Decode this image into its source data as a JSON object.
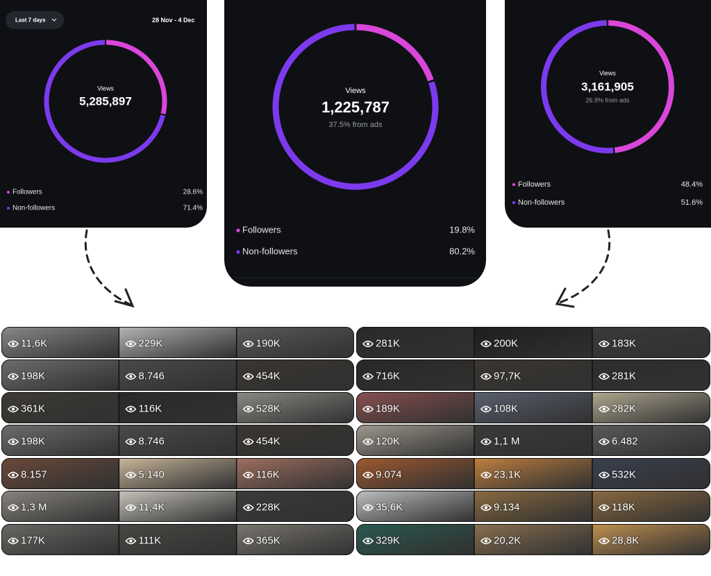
{
  "panels": [
    {
      "filter": "Last 7 days",
      "date_range": "28 Nov - 4 Dec",
      "metric": "Views",
      "total": "5,285,897",
      "legend": {
        "names": [
          "Followers",
          "Non-followers"
        ],
        "values": [
          28.6,
          71.4
        ],
        "value_labels": [
          "28.6%",
          "71.4%"
        ],
        "colors": [
          "#d946d9",
          "#7c3aed"
        ]
      }
    },
    {
      "metric": "Views",
      "total": "1,225,787",
      "ads_note": "37.5% from ads",
      "legend": {
        "names": [
          "Followers",
          "Non-followers"
        ],
        "values": [
          19.8,
          80.2
        ],
        "value_labels": [
          "19.8%",
          "80.2%"
        ],
        "colors": [
          "#d946d9",
          "#7c3aed"
        ]
      }
    },
    {
      "metric": "Views",
      "total": "3,161,905",
      "ads_note": "26.9% from ads",
      "legend": {
        "names": [
          "Followers",
          "Non-followers"
        ],
        "values": [
          48.4,
          51.6
        ],
        "value_labels": [
          "48.4%",
          "51.6%"
        ],
        "colors": [
          "#d946d9",
          "#7c3aed"
        ]
      }
    }
  ],
  "grids": [
    {
      "rows": [
        [
          "11,6K",
          "229K",
          "190K"
        ],
        [
          "198K",
          "8.746",
          "454K"
        ],
        [
          "361K",
          "116K",
          "528K"
        ],
        [
          "198K",
          "8.746",
          "454K"
        ],
        [
          "8.157",
          "5.140",
          "116K"
        ],
        [
          "1,3 M",
          "11,4K",
          "228K"
        ],
        [
          "177K",
          "111K",
          "365K"
        ]
      ]
    },
    {
      "rows": [
        [
          "281K",
          "200K",
          "183K"
        ],
        [
          "716K",
          "97,7K",
          "281K"
        ],
        [
          "189K",
          "108K",
          "282K"
        ],
        [
          "120K",
          "1,1 M",
          "6.482"
        ],
        [
          "9.074",
          "23,1K",
          "532K"
        ],
        [
          "35,6K",
          "9.134",
          "118K"
        ],
        [
          "329K",
          "20,2K",
          "28,8K"
        ]
      ]
    }
  ]
}
